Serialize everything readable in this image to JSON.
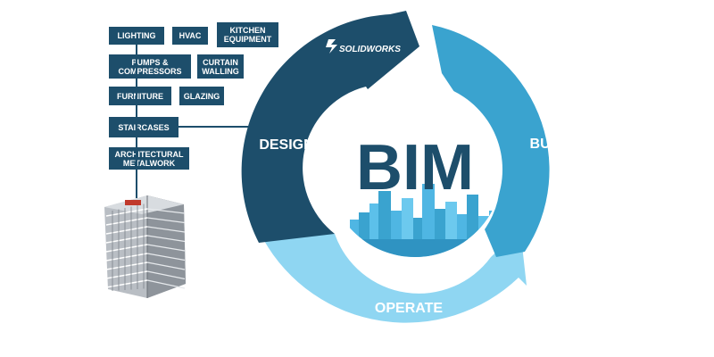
{
  "cycle": {
    "center_label": "BIM",
    "stages": [
      {
        "label": "DESIGN",
        "color": "#1d4e6b"
      },
      {
        "label": "BUILD",
        "color": "#3aa3cf"
      },
      {
        "label": "OPERATE",
        "color": "#8fd6f2"
      }
    ],
    "brand": "SOLIDWORKS",
    "center_text_color": "#1d4e6b"
  },
  "components": [
    "LIGHTING",
    "HVAC",
    "KITCHEN EQUIPMENT",
    "PUMPS & COMPRESSORS",
    "CURTAIN WALLING",
    "FURNITURE",
    "GLAZING",
    "STAIRCASES",
    "ARCHITECTURAL METALWORK"
  ],
  "colors": {
    "dark_blue": "#1d4e6b",
    "mid_blue": "#3aa3cf",
    "light_blue": "#8fd6f2",
    "city_blue": "#4fb6e3"
  },
  "icons": [
    "solidworks-logo-icon",
    "city-skyline-icon",
    "building-icon"
  ]
}
